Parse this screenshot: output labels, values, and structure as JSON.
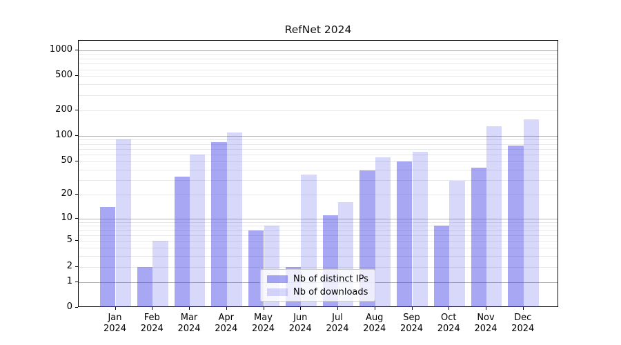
{
  "chart_data": {
    "type": "bar",
    "title": "RefNet 2024",
    "categories": [
      "Jan 2024",
      "Feb 2024",
      "Mar 2024",
      "Apr 2024",
      "May 2024",
      "Jun 2024",
      "Jul 2024",
      "Aug 2024",
      "Sep 2024",
      "Oct 2024",
      "Nov 2024",
      "Dec 2024"
    ],
    "series": [
      {
        "name": "Nb of distinct IPs",
        "values": [
          14,
          2,
          33,
          85,
          7,
          2,
          11,
          39,
          50,
          8,
          42,
          77
        ],
        "fill": "rgba(60,60,230,0.45)",
        "solid_hex": "#a8a8f4"
      },
      {
        "name": "Nb of downloads",
        "values": [
          90,
          5,
          60,
          110,
          8,
          35,
          16,
          56,
          65,
          29,
          130,
          155
        ],
        "fill": "rgba(60,60,230,0.2)",
        "solid_hex": "#d8d8fa"
      }
    ],
    "xlabel": "",
    "ylabel": "",
    "yscale": "log1p",
    "ylim": [
      0,
      1280
    ],
    "yticks": [
      1000,
      500,
      200,
      100,
      50,
      20,
      10,
      5,
      2,
      1,
      0
    ],
    "major_gridlines": [
      1,
      10,
      100,
      1000
    ],
    "minor_gridlines": [
      2,
      3,
      4,
      5,
      6,
      7,
      8,
      9,
      20,
      30,
      40,
      50,
      60,
      70,
      80,
      90,
      200,
      300,
      400,
      500,
      600,
      700,
      800,
      900
    ],
    "grid": "horizontal",
    "legend_position": "lower-center"
  },
  "colors": {
    "background": "#ffffff",
    "spine": "#000000",
    "major_grid": "#b2b2b2",
    "minor_grid": "#e8e8e8",
    "legend_border": "#cccccc",
    "text": "#000000"
  }
}
